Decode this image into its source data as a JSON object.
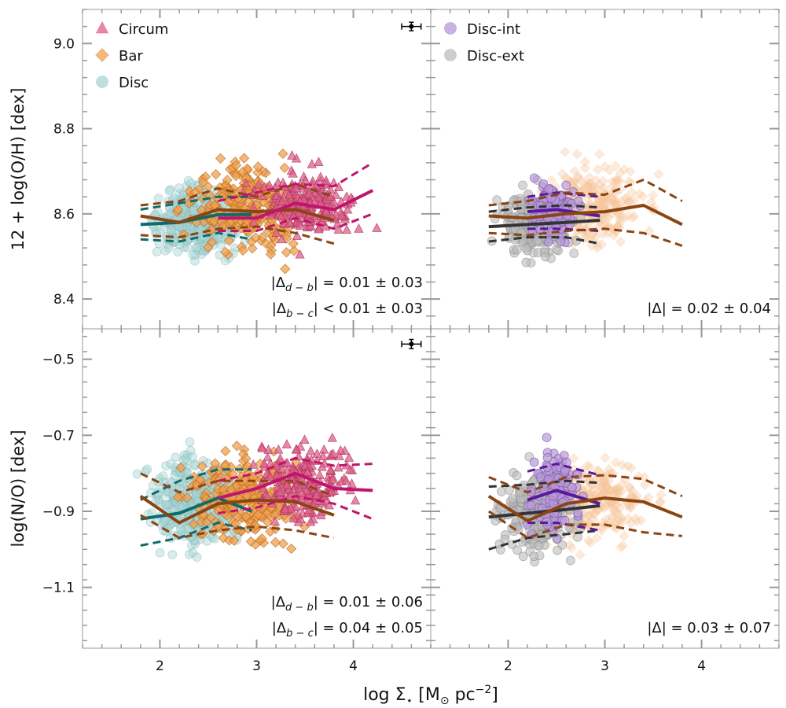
{
  "figure": {
    "xlabel_pre": "log Σ",
    "xlabel_sub": "⋆",
    "xlabel_mid": " [M",
    "xlabel_sun": "⊙",
    "xlabel_post": " pc",
    "xlabel_sup": "−2",
    "xlabel_end": "]"
  },
  "chart_data": [
    {
      "id": "oh-left",
      "type": "scatter",
      "ylabel": "12 + log(O/H) [dex]",
      "xlim": [
        1.2,
        4.8
      ],
      "ylim": [
        8.33,
        9.08
      ],
      "xticks": [
        2,
        3,
        4
      ],
      "yticks": [
        8.4,
        8.6,
        8.8,
        9.0
      ],
      "ytick_labels": [
        "8.4",
        "8.6",
        "8.8",
        "9.0"
      ],
      "legend": {
        "placement": "top-left",
        "entries": [
          {
            "name": "Circum",
            "marker": "triangle",
            "color": "#e0608a"
          },
          {
            "name": "Bar",
            "marker": "diamond",
            "color": "#f0a050"
          },
          {
            "name": "Disc",
            "marker": "circle",
            "color": "#a9d4d4"
          }
        ]
      },
      "errorbar": {
        "x": 4.6,
        "y": 9.04,
        "xerr": 0.1,
        "yerr": 0.01
      },
      "annotations": [
        {
          "pre": "|Δ",
          "sub": "d − b",
          "post": "| = 0.01 ± 0.03"
        },
        {
          "pre": "|Δ",
          "sub": "b − c",
          "post": "| < 0.01 ± 0.03"
        }
      ],
      "series": [
        {
          "name": "Disc",
          "color": "#0f6b6b",
          "median": [
            [
              1.8,
              8.575
            ],
            [
              2.2,
              8.58
            ],
            [
              2.6,
              8.598
            ],
            [
              2.95,
              8.598
            ]
          ],
          "upper": [
            [
              1.8,
              8.61
            ],
            [
              2.2,
              8.625
            ],
            [
              2.6,
              8.64
            ],
            [
              2.95,
              8.64
            ]
          ],
          "lower": [
            [
              1.8,
              8.54
            ],
            [
              2.2,
              8.535
            ],
            [
              2.6,
              8.555
            ],
            [
              2.95,
              8.54
            ]
          ]
        },
        {
          "name": "Bar",
          "color": "#8b4513",
          "median": [
            [
              1.8,
              8.595
            ],
            [
              2.2,
              8.58
            ],
            [
              2.6,
              8.61
            ],
            [
              3.0,
              8.605
            ],
            [
              3.4,
              8.61
            ],
            [
              3.8,
              8.585
            ]
          ],
          "upper": [
            [
              1.8,
              8.62
            ],
            [
              2.2,
              8.63
            ],
            [
              2.6,
              8.66
            ],
            [
              3.0,
              8.64
            ],
            [
              3.4,
              8.67
            ],
            [
              3.8,
              8.64
            ]
          ],
          "lower": [
            [
              1.8,
              8.55
            ],
            [
              2.2,
              8.545
            ],
            [
              2.6,
              8.565
            ],
            [
              3.0,
              8.57
            ],
            [
              3.4,
              8.555
            ],
            [
              3.8,
              8.53
            ]
          ]
        },
        {
          "name": "Circum",
          "color": "#c0156e",
          "median": [
            [
              2.6,
              8.59
            ],
            [
              3.0,
              8.59
            ],
            [
              3.4,
              8.625
            ],
            [
              3.8,
              8.61
            ],
            [
              4.2,
              8.655
            ]
          ],
          "upper": [
            [
              2.6,
              8.63
            ],
            [
              3.0,
              8.65
            ],
            [
              3.4,
              8.67
            ],
            [
              3.8,
              8.665
            ],
            [
              4.2,
              8.72
            ]
          ],
          "lower": [
            [
              2.6,
              8.56
            ],
            [
              3.0,
              8.56
            ],
            [
              3.4,
              8.59
            ],
            [
              3.8,
              8.565
            ],
            [
              4.2,
              8.6
            ]
          ]
        }
      ]
    },
    {
      "id": "oh-right",
      "type": "scatter",
      "xlim": [
        1.2,
        4.8
      ],
      "ylim": [
        8.33,
        9.08
      ],
      "xticks": [
        2,
        3,
        4
      ],
      "yticks": [
        8.4,
        8.6,
        8.8,
        9.0
      ],
      "legend": {
        "placement": "top-left",
        "entries": [
          {
            "name": "Disc-int",
            "marker": "circle",
            "color": "#b89ad8"
          },
          {
            "name": "Disc-ext",
            "marker": "circle",
            "color": "#bdbdbd"
          }
        ]
      },
      "annotations": [
        {
          "pre": "|Δ",
          "sub": "",
          "post": "| = 0.02 ± 0.04"
        }
      ],
      "series": [
        {
          "name": "Disc-ext",
          "color": "#333333",
          "median": [
            [
              1.8,
              8.57
            ],
            [
              2.2,
              8.575
            ],
            [
              2.6,
              8.58
            ],
            [
              2.95,
              8.585
            ]
          ],
          "upper": [
            [
              1.8,
              8.605
            ],
            [
              2.2,
              8.615
            ],
            [
              2.6,
              8.62
            ],
            [
              2.95,
              8.615
            ]
          ],
          "lower": [
            [
              1.8,
              8.535
            ],
            [
              2.2,
              8.545
            ],
            [
              2.6,
              8.545
            ],
            [
              2.95,
              8.53
            ]
          ]
        },
        {
          "name": "Disc-int",
          "color": "#5a189a",
          "median": [
            [
              2.2,
              8.605
            ],
            [
              2.5,
              8.61
            ],
            [
              2.95,
              8.595
            ]
          ],
          "upper": [
            [
              2.2,
              8.64
            ],
            [
              2.5,
              8.65
            ],
            [
              2.95,
              8.64
            ]
          ],
          "lower": [
            [
              2.2,
              8.565
            ],
            [
              2.5,
              8.565
            ],
            [
              2.95,
              8.56
            ]
          ]
        },
        {
          "name": "Bar",
          "color": "#8b4513",
          "median": [
            [
              1.8,
              8.595
            ],
            [
              2.2,
              8.59
            ],
            [
              2.6,
              8.6
            ],
            [
              3.0,
              8.605
            ],
            [
              3.4,
              8.62
            ],
            [
              3.8,
              8.575
            ]
          ],
          "upper": [
            [
              1.8,
              8.62
            ],
            [
              2.2,
              8.63
            ],
            [
              2.6,
              8.65
            ],
            [
              3.0,
              8.645
            ],
            [
              3.4,
              8.68
            ],
            [
              3.8,
              8.63
            ]
          ],
          "lower": [
            [
              1.8,
              8.555
            ],
            [
              2.2,
              8.55
            ],
            [
              2.6,
              8.56
            ],
            [
              3.0,
              8.565
            ],
            [
              3.4,
              8.555
            ],
            [
              3.8,
              8.525
            ]
          ]
        }
      ]
    },
    {
      "id": "no-left",
      "type": "scatter",
      "ylabel": "log(N/O) [dex]",
      "xlim": [
        1.2,
        4.8
      ],
      "ylim": [
        -1.26,
        -0.42
      ],
      "xticks": [
        2,
        3,
        4
      ],
      "yticks": [
        -1.1,
        -0.9,
        -0.7,
        -0.5
      ],
      "ytick_labels": [
        "−1.1",
        "−0.9",
        "−0.7",
        "−0.5"
      ],
      "xtick_labels": [
        "2",
        "3",
        "4"
      ],
      "errorbar": {
        "x": 4.6,
        "y": -0.46,
        "xerr": 0.1,
        "yerr": 0.012
      },
      "annotations": [
        {
          "pre": "|Δ",
          "sub": "d − b",
          "post": "| = 0.01 ± 0.06"
        },
        {
          "pre": "|Δ",
          "sub": "b − c",
          "post": "| = 0.04 ± 0.05"
        }
      ],
      "series": [
        {
          "name": "Disc",
          "color": "#0f6b6b",
          "median": [
            [
              1.8,
              -0.92
            ],
            [
              2.2,
              -0.905
            ],
            [
              2.6,
              -0.865
            ],
            [
              2.95,
              -0.9
            ]
          ],
          "upper": [
            [
              1.8,
              -0.87
            ],
            [
              2.2,
              -0.82
            ],
            [
              2.6,
              -0.79
            ],
            [
              2.95,
              -0.79
            ]
          ],
          "lower": [
            [
              1.8,
              -0.99
            ],
            [
              2.2,
              -0.97
            ],
            [
              2.6,
              -0.93
            ],
            [
              2.95,
              -0.95
            ]
          ]
        },
        {
          "name": "Bar",
          "color": "#8b4513",
          "median": [
            [
              1.8,
              -0.86
            ],
            [
              2.2,
              -0.93
            ],
            [
              2.6,
              -0.88
            ],
            [
              3.0,
              -0.87
            ],
            [
              3.4,
              -0.875
            ],
            [
              3.8,
              -0.91
            ]
          ],
          "upper": [
            [
              1.8,
              -0.8
            ],
            [
              2.2,
              -0.85
            ],
            [
              2.6,
              -0.82
            ],
            [
              3.0,
              -0.82
            ],
            [
              3.4,
              -0.82
            ],
            [
              3.8,
              -0.86
            ]
          ],
          "lower": [
            [
              1.8,
              -0.91
            ],
            [
              2.2,
              -0.97
            ],
            [
              2.6,
              -0.95
            ],
            [
              3.0,
              -0.94
            ],
            [
              3.4,
              -0.95
            ],
            [
              3.8,
              -0.97
            ]
          ]
        },
        {
          "name": "Circum",
          "color": "#c0156e",
          "median": [
            [
              2.6,
              -0.865
            ],
            [
              3.0,
              -0.84
            ],
            [
              3.4,
              -0.8
            ],
            [
              3.8,
              -0.84
            ],
            [
              4.2,
              -0.845
            ]
          ],
          "upper": [
            [
              2.6,
              -0.82
            ],
            [
              3.0,
              -0.8
            ],
            [
              3.4,
              -0.76
            ],
            [
              3.8,
              -0.78
            ],
            [
              4.2,
              -0.775
            ]
          ],
          "lower": [
            [
              2.6,
              -0.905
            ],
            [
              3.0,
              -0.89
            ],
            [
              3.4,
              -0.86
            ],
            [
              3.8,
              -0.88
            ],
            [
              4.2,
              -0.92
            ]
          ]
        }
      ]
    },
    {
      "id": "no-right",
      "type": "scatter",
      "xlim": [
        1.2,
        4.8
      ],
      "ylim": [
        -1.26,
        -0.42
      ],
      "xticks": [
        2,
        3,
        4
      ],
      "yticks": [
        -1.1,
        -0.9,
        -0.7,
        -0.5
      ],
      "xtick_labels": [
        "2",
        "3",
        "4"
      ],
      "annotations": [
        {
          "pre": "|Δ",
          "sub": "",
          "post": "| = 0.03 ± 0.07"
        }
      ],
      "series": [
        {
          "name": "Disc-ext",
          "color": "#333333",
          "median": [
            [
              1.8,
              -0.915
            ],
            [
              2.2,
              -0.905
            ],
            [
              2.6,
              -0.895
            ],
            [
              2.95,
              -0.885
            ]
          ],
          "upper": [
            [
              1.8,
              -0.835
            ],
            [
              2.2,
              -0.83
            ],
            [
              2.6,
              -0.82
            ],
            [
              2.95,
              -0.825
            ]
          ],
          "lower": [
            [
              1.8,
              -1.0
            ],
            [
              2.2,
              -0.97
            ],
            [
              2.6,
              -0.96
            ],
            [
              2.95,
              -0.95
            ]
          ]
        },
        {
          "name": "Disc-int",
          "color": "#5a189a",
          "median": [
            [
              2.2,
              -0.87
            ],
            [
              2.5,
              -0.845
            ],
            [
              2.95,
              -0.88
            ]
          ],
          "upper": [
            [
              2.2,
              -0.795
            ],
            [
              2.5,
              -0.775
            ],
            [
              2.95,
              -0.805
            ]
          ],
          "lower": [
            [
              2.2,
              -0.93
            ],
            [
              2.5,
              -0.93
            ],
            [
              2.95,
              -0.95
            ]
          ]
        },
        {
          "name": "Bar",
          "color": "#8b4513",
          "median": [
            [
              1.8,
              -0.86
            ],
            [
              2.2,
              -0.925
            ],
            [
              2.6,
              -0.88
            ],
            [
              3.0,
              -0.865
            ],
            [
              3.4,
              -0.875
            ],
            [
              3.8,
              -0.915
            ]
          ],
          "upper": [
            [
              1.8,
              -0.81
            ],
            [
              2.2,
              -0.85
            ],
            [
              2.6,
              -0.81
            ],
            [
              3.0,
              -0.805
            ],
            [
              3.4,
              -0.815
            ],
            [
              3.8,
              -0.86
            ]
          ],
          "lower": [
            [
              1.8,
              -0.9
            ],
            [
              2.2,
              -0.97
            ],
            [
              2.6,
              -0.935
            ],
            [
              3.0,
              -0.935
            ],
            [
              3.4,
              -0.955
            ],
            [
              3.8,
              -0.965
            ]
          ]
        }
      ]
    }
  ]
}
